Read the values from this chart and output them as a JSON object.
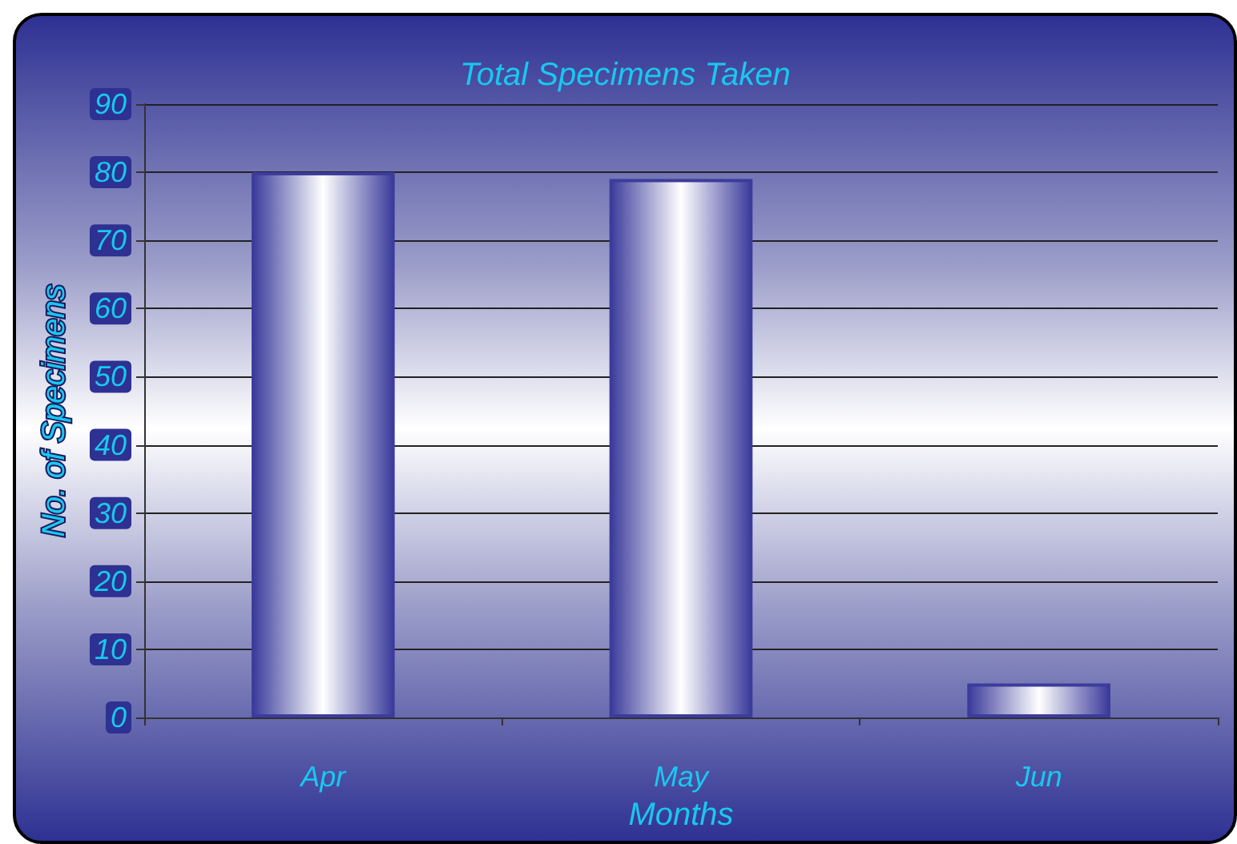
{
  "chart_data": {
    "type": "bar",
    "title": "Total Specimens Taken",
    "xlabel": "Months",
    "ylabel": "No. of Specimens",
    "categories": [
      "Apr",
      "May",
      "Jun"
    ],
    "values": [
      80,
      79,
      5
    ],
    "color": "#3c3c9c",
    "ylim": [
      0,
      90
    ],
    "yticks": [
      0,
      10,
      20,
      30,
      40,
      50,
      60,
      70,
      80,
      90
    ],
    "grid": "y"
  }
}
